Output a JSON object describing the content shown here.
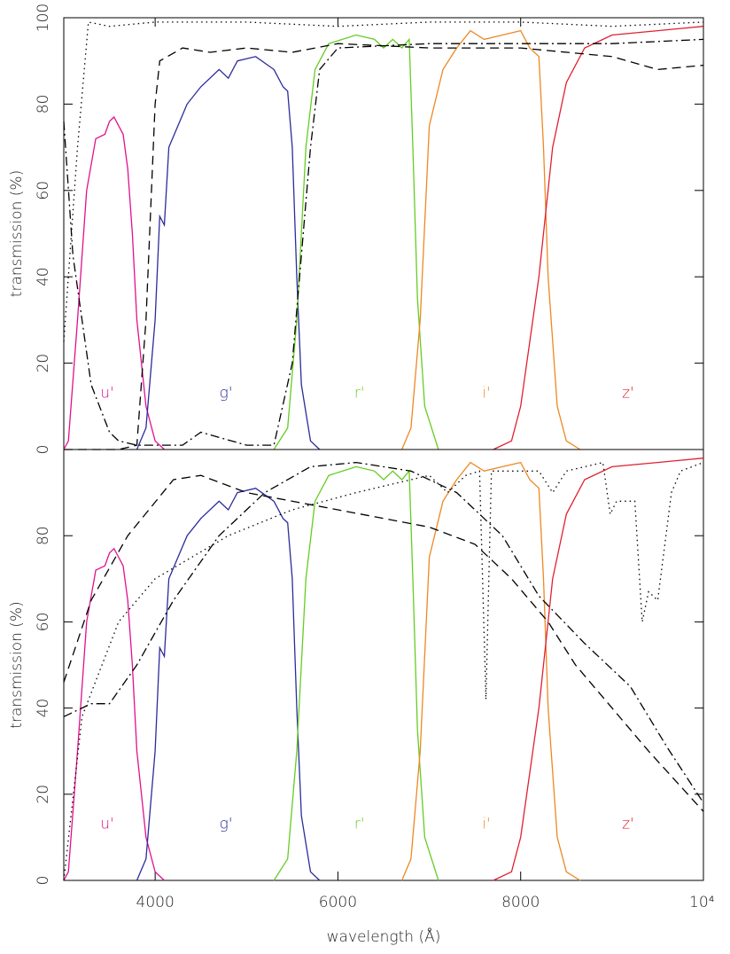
{
  "chart_data": [
    {
      "type": "line",
      "ylabel": "transmission (%)",
      "xlim": [
        3000,
        10000
      ],
      "ylim": [
        0,
        100
      ],
      "yticks": [
        0,
        20,
        40,
        60,
        80,
        100
      ],
      "series": [
        {
          "name": "u'",
          "color": "#e0108f",
          "style": "solid",
          "x": [
            3000,
            3050,
            3150,
            3250,
            3350,
            3450,
            3500,
            3550,
            3600,
            3650,
            3700,
            3750,
            3800,
            3900,
            4000,
            4100
          ],
          "values": [
            0,
            2,
            30,
            60,
            72,
            73,
            76,
            77,
            75,
            73,
            65,
            50,
            30,
            10,
            2,
            0
          ]
        },
        {
          "name": "g'",
          "color": "#2b2b9b",
          "style": "solid",
          "x": [
            3800,
            3900,
            4000,
            4050,
            4100,
            4150,
            4250,
            4350,
            4500,
            4700,
            4800,
            4900,
            5100,
            5300,
            5400,
            5450,
            5500,
            5550,
            5600,
            5700,
            5800
          ],
          "values": [
            0,
            5,
            30,
            54,
            52,
            70,
            75,
            80,
            84,
            88,
            86,
            90,
            91,
            88,
            84,
            83,
            70,
            40,
            15,
            2,
            0
          ]
        },
        {
          "name": "r'",
          "color": "#66cc22",
          "style": "solid",
          "x": [
            5300,
            5450,
            5550,
            5650,
            5750,
            5900,
            6200,
            6400,
            6500,
            6600,
            6700,
            6780,
            6820,
            6870,
            6950,
            7100
          ],
          "values": [
            0,
            5,
            30,
            70,
            88,
            94,
            96,
            95,
            93,
            95,
            93,
            95,
            70,
            35,
            10,
            0
          ]
        },
        {
          "name": "i'",
          "color": "#ee8822",
          "style": "solid",
          "x": [
            6700,
            6800,
            6900,
            7000,
            7150,
            7300,
            7450,
            7600,
            7800,
            8000,
            8100,
            8200,
            8250,
            8300,
            8400,
            8500,
            8650
          ],
          "values": [
            0,
            5,
            30,
            75,
            88,
            93,
            97,
            95,
            96,
            97,
            93,
            91,
            70,
            40,
            10,
            2,
            0
          ]
        },
        {
          "name": "z'",
          "color": "#e02030",
          "style": "solid",
          "x": [
            7700,
            7900,
            8000,
            8200,
            8350,
            8500,
            8700,
            9000,
            9500,
            10000
          ],
          "values": [
            0,
            2,
            10,
            40,
            70,
            85,
            93,
            96,
            97,
            98
          ]
        },
        {
          "color": "#000000",
          "style": "dotted",
          "x": [
            3000,
            3150,
            3270,
            3500,
            4000,
            5000,
            6000,
            7000,
            8000,
            9000,
            10000
          ],
          "values": [
            25,
            70,
            99,
            98,
            99,
            99,
            98,
            99,
            99,
            98,
            99
          ]
        },
        {
          "color": "#000000",
          "style": "dashed",
          "x": [
            3000,
            3600,
            3800,
            3900,
            4000,
            4050,
            4300,
            4600,
            5000,
            5500,
            6000,
            7000,
            8000,
            9000,
            9500,
            10000
          ],
          "values": [
            0,
            0,
            1,
            30,
            80,
            90,
            93,
            92,
            93,
            92,
            94,
            93,
            93,
            91,
            88,
            89
          ]
        },
        {
          "color": "#000000",
          "style": "dashdot",
          "x": [
            3000,
            3100,
            3300,
            3500,
            3600,
            3800,
            4300,
            4500,
            5000,
            5300,
            5500,
            5700,
            5800,
            6000,
            7000,
            8000,
            9000,
            10000
          ],
          "values": [
            76,
            45,
            15,
            4,
            2,
            1,
            1,
            4,
            1,
            1,
            20,
            70,
            88,
            93,
            94,
            94,
            94,
            95
          ]
        }
      ]
    },
    {
      "type": "line",
      "ylabel": "transmission (%)",
      "xlabel": "wavelength (Å)",
      "xlim": [
        3000,
        10000
      ],
      "ylim": [
        0,
        100
      ],
      "yticks": [
        0,
        20,
        40,
        60,
        80
      ],
      "xticks": [
        4000,
        6000,
        8000,
        {
          "value": 10000,
          "label": "10⁴"
        }
      ],
      "series": [
        {
          "name": "u'",
          "color": "#e0108f",
          "style": "solid",
          "x": [
            3000,
            3050,
            3150,
            3250,
            3350,
            3450,
            3500,
            3550,
            3600,
            3650,
            3700,
            3750,
            3800,
            3900,
            4000,
            4100
          ],
          "values": [
            0,
            2,
            30,
            60,
            72,
            73,
            76,
            77,
            75,
            73,
            65,
            50,
            30,
            10,
            2,
            0
          ]
        },
        {
          "name": "g'",
          "color": "#2b2b9b",
          "style": "solid",
          "x": [
            3800,
            3900,
            4000,
            4050,
            4100,
            4150,
            4250,
            4350,
            4500,
            4700,
            4800,
            4900,
            5100,
            5300,
            5400,
            5450,
            5500,
            5550,
            5600,
            5700,
            5800
          ],
          "values": [
            0,
            5,
            30,
            54,
            52,
            70,
            75,
            80,
            84,
            88,
            86,
            90,
            91,
            88,
            84,
            83,
            70,
            40,
            15,
            2,
            0
          ]
        },
        {
          "name": "r'",
          "color": "#66cc22",
          "style": "solid",
          "x": [
            5300,
            5450,
            5550,
            5650,
            5750,
            5900,
            6200,
            6400,
            6500,
            6600,
            6700,
            6780,
            6820,
            6870,
            6950,
            7100
          ],
          "values": [
            0,
            5,
            30,
            70,
            88,
            94,
            96,
            95,
            93,
            95,
            93,
            95,
            70,
            35,
            10,
            0
          ]
        },
        {
          "name": "i'",
          "color": "#ee8822",
          "style": "solid",
          "x": [
            6700,
            6800,
            6900,
            7000,
            7150,
            7300,
            7450,
            7600,
            7800,
            8000,
            8100,
            8200,
            8250,
            8300,
            8400,
            8500,
            8650
          ],
          "values": [
            0,
            5,
            30,
            75,
            88,
            93,
            97,
            95,
            96,
            97,
            93,
            91,
            70,
            40,
            10,
            2,
            0
          ]
        },
        {
          "name": "z'",
          "color": "#e02030",
          "style": "solid",
          "x": [
            7700,
            7900,
            8000,
            8200,
            8350,
            8500,
            8700,
            9000,
            9500,
            10000
          ],
          "values": [
            0,
            2,
            10,
            40,
            70,
            85,
            93,
            96,
            97,
            98
          ]
        },
        {
          "color": "#000000",
          "style": "dotted",
          "x": [
            3000,
            3200,
            3600,
            4000,
            4800,
            5500,
            6200,
            6600,
            7000,
            7200,
            7400,
            7550,
            7620,
            7680,
            8200,
            8350,
            8500,
            8900,
            8980,
            9050,
            9250,
            9330,
            9400,
            9500,
            9650,
            9750,
            10000
          ],
          "values": [
            0,
            38,
            60,
            70,
            80,
            86,
            90,
            92,
            94,
            90,
            94,
            95,
            42,
            95,
            95,
            90,
            95,
            97,
            85,
            88,
            88,
            60,
            67,
            65,
            90,
            95,
            97
          ]
        },
        {
          "color": "#000000",
          "style": "dashed",
          "x": [
            3000,
            3300,
            3700,
            4200,
            4500,
            5000,
            6000,
            7000,
            7500,
            7900,
            8300,
            8600,
            9000,
            9400,
            10000
          ],
          "values": [
            46,
            65,
            80,
            93,
            94,
            90,
            86,
            82,
            78,
            70,
            60,
            50,
            40,
            30,
            16
          ]
        },
        {
          "color": "#000000",
          "style": "dashdot",
          "x": [
            3000,
            3300,
            3500,
            3800,
            4200,
            4700,
            5200,
            5700,
            6200,
            6800,
            7300,
            7800,
            8200,
            8700,
            9200,
            9600,
            10000
          ],
          "values": [
            38,
            41,
            41,
            50,
            65,
            80,
            90,
            96,
            97,
            95,
            90,
            80,
            66,
            55,
            45,
            31,
            18
          ]
        }
      ]
    }
  ]
}
